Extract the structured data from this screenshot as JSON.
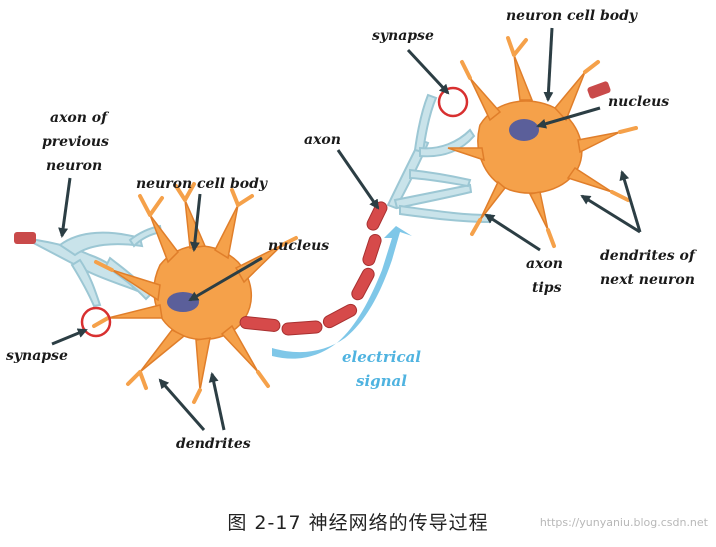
{
  "labels": {
    "synapse_top": "synapse",
    "neuron_cell_body_top": "neuron cell body",
    "nucleus_top": "nucleus",
    "axon_of_previous_line1": "axon of",
    "axon_of_previous_line2": "previous",
    "axon_of_previous_line3": "neuron",
    "axon": "axon",
    "neuron_cell_body_left": "neuron cell body",
    "nucleus_left": "nucleus",
    "axon_tips_line1": "axon",
    "axon_tips_line2": "tips",
    "dendrites_next_line1": "dendrites of",
    "dendrites_next_line2": "next neuron",
    "synapse_left": "synapse",
    "electrical_line1": "electrical",
    "electrical_line2": "signal",
    "dendrites": "dendrites"
  },
  "caption": "图 2-17 神经网络的传导过程",
  "watermark": "https://yunyaniu.blog.csdn.net",
  "colors": {
    "cell_body": "#f5a14a",
    "cell_body_light": "#fbc489",
    "nucleus": "#5b5f9a",
    "axon_segment": "#d64a4a",
    "axon_tip": "#c9e3ea",
    "synapse_circle": "#d83030",
    "signal_arrow": "#7fc7e8",
    "pointer": "#2c3e44"
  }
}
